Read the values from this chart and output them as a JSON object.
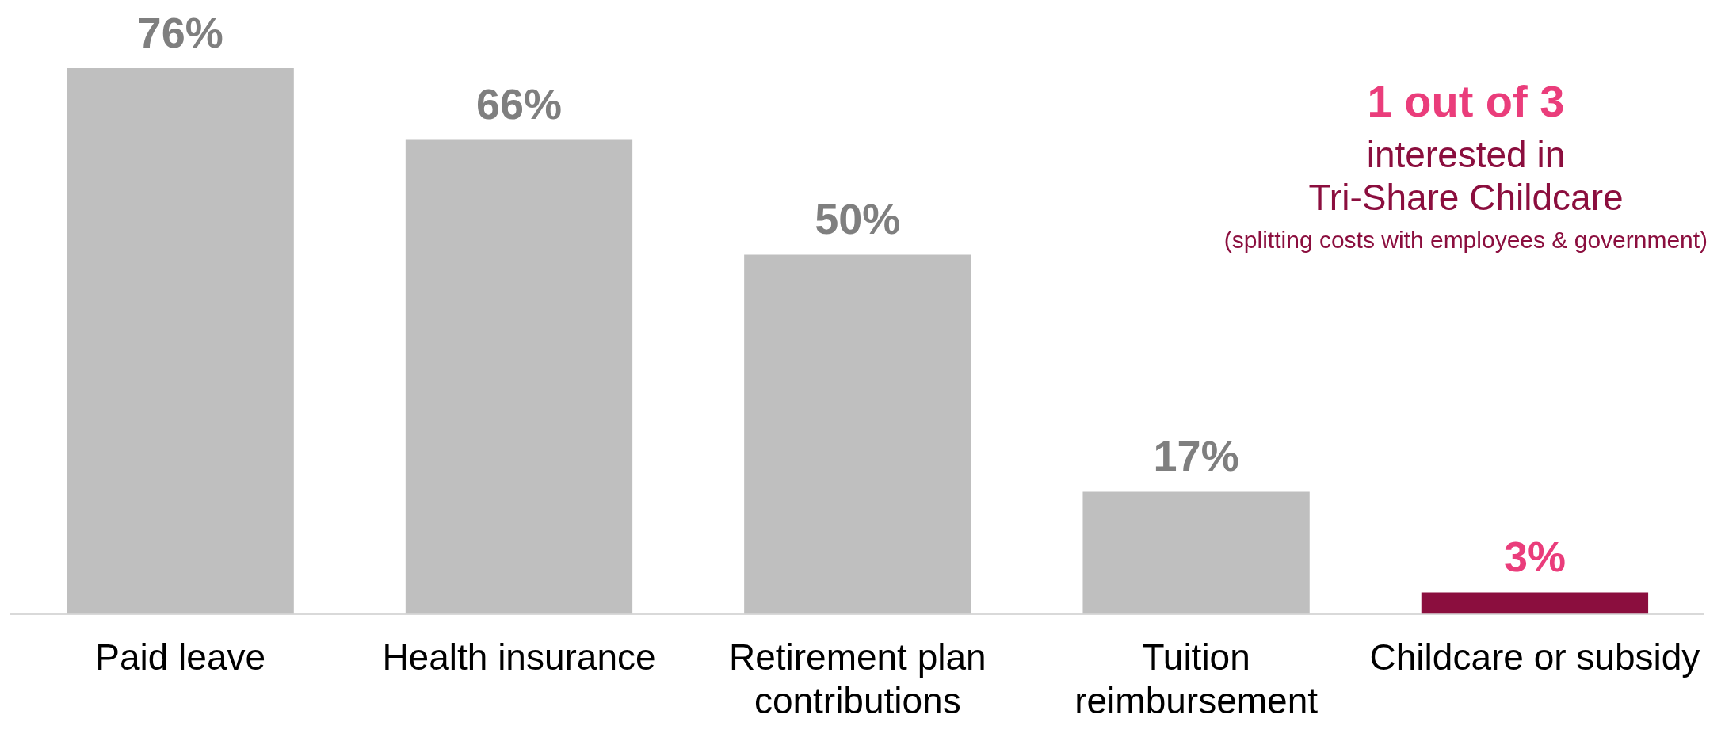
{
  "chart_data": {
    "type": "bar",
    "categories": [
      "Paid leave",
      "Health insurance",
      "Retirement plan contributions",
      "Tuition reimbursement",
      "Childcare or subsidy"
    ],
    "values": [
      76,
      66,
      50,
      17,
      3
    ],
    "colors": [
      "#bfbfbf",
      "#bfbfbf",
      "#bfbfbf",
      "#bfbfbf",
      "#8b0e3e"
    ],
    "data_labels": true,
    "value_labels": [
      "76%",
      "66%",
      "50%",
      "17%",
      "3%"
    ],
    "tick_labels": "x",
    "grid": false,
    "legend": false,
    "annotations": [
      "1 out of 3",
      "interested in",
      "Tri-Share Childcare",
      "(splitting costs with employees & government)"
    ]
  }
}
